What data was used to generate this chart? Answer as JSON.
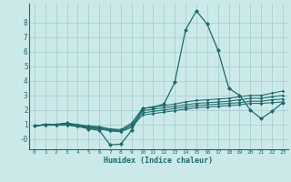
{
  "xlabel": "Humidex (Indice chaleur)",
  "xlim": [
    -0.5,
    23.5
  ],
  "ylim": [
    -0.7,
    9.3
  ],
  "background_color": "#cce9e9",
  "grid_color": "#aacfcf",
  "line_color": "#1a6b6b",
  "xticks": [
    0,
    1,
    2,
    3,
    4,
    5,
    6,
    7,
    8,
    9,
    10,
    11,
    12,
    13,
    14,
    15,
    16,
    17,
    18,
    19,
    20,
    21,
    22,
    23
  ],
  "yticks": [
    0,
    1,
    2,
    3,
    4,
    5,
    6,
    7,
    8
  ],
  "ytick_labels": [
    "-0",
    "1",
    "2",
    "3",
    "4",
    "5",
    "6",
    "7",
    "8"
  ],
  "lines": [
    {
      "y": [
        0.9,
        1.0,
        1.0,
        1.1,
        0.9,
        0.7,
        0.6,
        -0.4,
        -0.35,
        0.6,
        2.1,
        2.2,
        2.4,
        3.9,
        7.5,
        8.8,
        7.9,
        6.1,
        3.5,
        3.0,
        2.0,
        1.4,
        1.9,
        2.5
      ],
      "lw": 0.9,
      "ms": 2.5
    },
    {
      "y": [
        0.9,
        1.0,
        1.0,
        1.1,
        1.0,
        0.9,
        0.85,
        0.7,
        0.65,
        1.1,
        2.1,
        2.2,
        2.3,
        2.4,
        2.55,
        2.65,
        2.7,
        2.75,
        2.8,
        2.9,
        3.0,
        3.0,
        3.15,
        3.3
      ],
      "lw": 0.75,
      "ms": 1.8
    },
    {
      "y": [
        0.9,
        1.0,
        1.0,
        1.05,
        0.95,
        0.85,
        0.8,
        0.65,
        0.6,
        1.0,
        1.95,
        2.05,
        2.15,
        2.25,
        2.35,
        2.45,
        2.5,
        2.55,
        2.6,
        2.7,
        2.8,
        2.8,
        2.9,
        3.0
      ],
      "lw": 0.75,
      "ms": 1.8
    },
    {
      "y": [
        0.9,
        1.0,
        1.0,
        1.0,
        0.9,
        0.8,
        0.75,
        0.6,
        0.55,
        0.9,
        1.8,
        1.9,
        2.0,
        2.1,
        2.2,
        2.3,
        2.35,
        2.4,
        2.45,
        2.5,
        2.6,
        2.6,
        2.7,
        2.75
      ],
      "lw": 0.75,
      "ms": 1.8
    },
    {
      "y": [
        0.9,
        0.95,
        0.95,
        0.95,
        0.85,
        0.75,
        0.7,
        0.55,
        0.5,
        0.8,
        1.65,
        1.75,
        1.85,
        1.95,
        2.05,
        2.15,
        2.2,
        2.25,
        2.3,
        2.35,
        2.45,
        2.45,
        2.5,
        2.55
      ],
      "lw": 0.75,
      "ms": 1.8
    }
  ]
}
